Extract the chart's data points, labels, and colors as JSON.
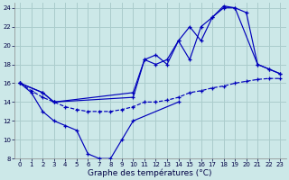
{
  "title": "Graphe des températures (°C)",
  "background_color": "#cce8e8",
  "grid_color": "#aacccc",
  "line_color": "#0000bb",
  "xlim": [
    -0.5,
    23.5
  ],
  "ylim": [
    8,
    24.5
  ],
  "xticks": [
    0,
    1,
    2,
    3,
    4,
    5,
    6,
    7,
    8,
    9,
    10,
    11,
    12,
    13,
    14,
    15,
    16,
    17,
    18,
    19,
    20,
    21,
    22,
    23
  ],
  "yticks": [
    8,
    10,
    12,
    14,
    16,
    18,
    20,
    22,
    24
  ],
  "series1_x": [
    0,
    1,
    2,
    3,
    4,
    5,
    6,
    7,
    8,
    9,
    10,
    14
  ],
  "series1_y": [
    16,
    15,
    13,
    12,
    11.5,
    11,
    8.5,
    8,
    8,
    10,
    12,
    14
  ],
  "series2_x": [
    0,
    1,
    2,
    3,
    4,
    5,
    6,
    7,
    8,
    9,
    10,
    11,
    12,
    13,
    14,
    15,
    16,
    17,
    18,
    19,
    20,
    21,
    22,
    23
  ],
  "series2_y": [
    16,
    15.2,
    14.5,
    14,
    13.5,
    13.2,
    13,
    13,
    13,
    13.2,
    13.5,
    14,
    14,
    14.2,
    14.5,
    15,
    15.2,
    15.5,
    15.7,
    16,
    16.2,
    16.4,
    16.5,
    16.5
  ],
  "series3_x": [
    0,
    2,
    3,
    10,
    11,
    12,
    13,
    14,
    15,
    16,
    17,
    18,
    19,
    20,
    21,
    22,
    23
  ],
  "series3_y": [
    16,
    15,
    14,
    14.5,
    18.5,
    18,
    18.5,
    20.5,
    22,
    20.5,
    23,
    24,
    24,
    23.5,
    18,
    17.5,
    17
  ],
  "series4_x": [
    0,
    2,
    3,
    10,
    11,
    12,
    13,
    14,
    15,
    16,
    17,
    18,
    19,
    21,
    22,
    23
  ],
  "series4_y": [
    16,
    15,
    14,
    15,
    18.5,
    19,
    18,
    20.5,
    18.5,
    22,
    23,
    24.2,
    24,
    18,
    17.5,
    17
  ]
}
